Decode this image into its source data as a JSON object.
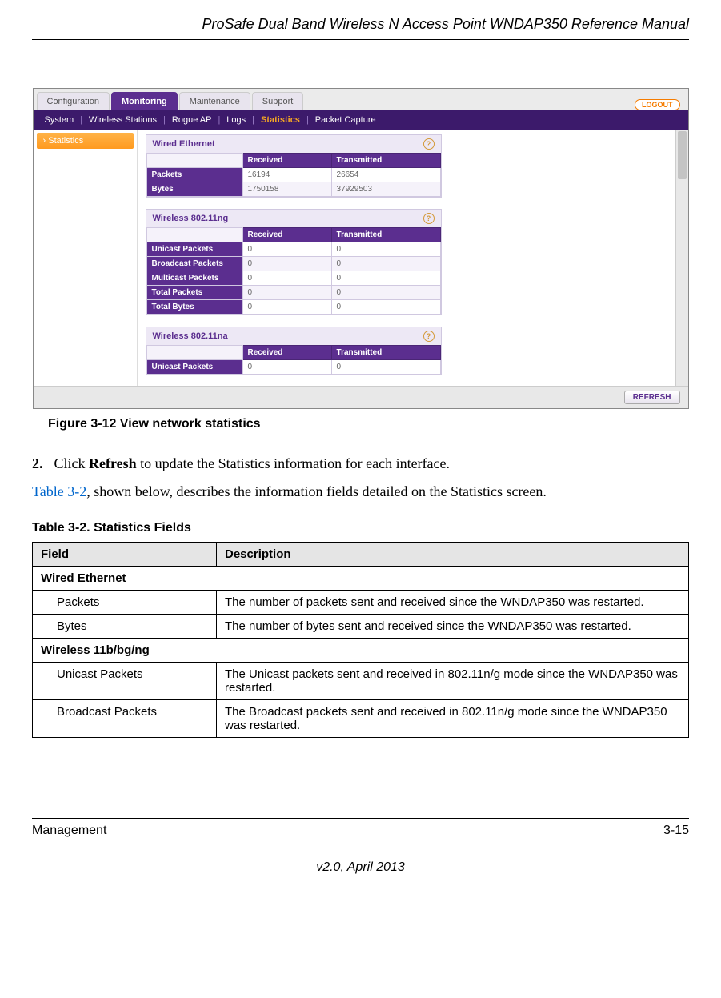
{
  "header": {
    "doc_title": "ProSafe Dual Band Wireless N Access Point WNDAP350 Reference Manual"
  },
  "screenshot": {
    "tabs": [
      "Configuration",
      "Monitoring",
      "Maintenance",
      "Support"
    ],
    "active_tab_index": 1,
    "logout": "LOGOUT",
    "subnav": [
      "System",
      "Wireless Stations",
      "Rogue AP",
      "Logs",
      "Statistics",
      "Packet Capture"
    ],
    "active_subnav_index": 4,
    "sidebar_item": "Statistics",
    "col_received": "Received",
    "col_transmitted": "Transmitted",
    "help_glyph": "?",
    "panel1": {
      "title": "Wired Ethernet",
      "rows": [
        {
          "label": "Packets",
          "rx": "16194",
          "tx": "26654"
        },
        {
          "label": "Bytes",
          "rx": "1750158",
          "tx": "37929503"
        }
      ]
    },
    "panel2": {
      "title": "Wireless 802.11ng",
      "rows": [
        {
          "label": "Unicast Packets",
          "rx": "0",
          "tx": "0"
        },
        {
          "label": "Broadcast Packets",
          "rx": "0",
          "tx": "0"
        },
        {
          "label": "Multicast Packets",
          "rx": "0",
          "tx": "0"
        },
        {
          "label": "Total Packets",
          "rx": "0",
          "tx": "0"
        },
        {
          "label": "Total Bytes",
          "rx": "0",
          "tx": "0"
        }
      ]
    },
    "panel3": {
      "title": "Wireless 802.11na",
      "rows": [
        {
          "label": "Unicast Packets",
          "rx": "0",
          "tx": "0"
        }
      ]
    },
    "refresh_button": "REFRESH"
  },
  "figure_caption": "Figure 3-12  View network statistics",
  "step": {
    "num": "2.",
    "text_prefix": "Click ",
    "bold": "Refresh",
    "text_suffix": " to update the Statistics information for each interface."
  },
  "para": {
    "link": "Table 3-2",
    "rest": ", shown below, describes the information fields detailed on the Statistics screen."
  },
  "doc_table": {
    "title": "Table 3-2.   Statistics Fields",
    "header_field": "Field",
    "header_desc": "Description",
    "sections": [
      {
        "heading": "Wired Ethernet",
        "rows": [
          {
            "field": "Packets",
            "desc": "The number of packets sent and received since the WNDAP350 was restarted."
          },
          {
            "field": "Bytes",
            "desc": "The number of bytes sent and received since the WNDAP350 was restarted."
          }
        ]
      },
      {
        "heading": "Wireless 11b/bg/ng",
        "rows": [
          {
            "field": "Unicast Packets",
            "desc": "The Unicast packets sent and received in 802.11n/g mode since the WNDAP350 was restarted."
          },
          {
            "field": "Broadcast Packets",
            "desc": "The Broadcast packets sent and received in 802.11n/g mode since the WNDAP350 was restarted."
          }
        ]
      }
    ]
  },
  "footer": {
    "left": "Management",
    "right": "3-15",
    "center": "v2.0, April 2013"
  },
  "colors": {
    "purple_dark": "#3c1a6b",
    "purple": "#5b2e8f",
    "orange": "#f57c00",
    "panel_bg": "#ede8f5"
  }
}
